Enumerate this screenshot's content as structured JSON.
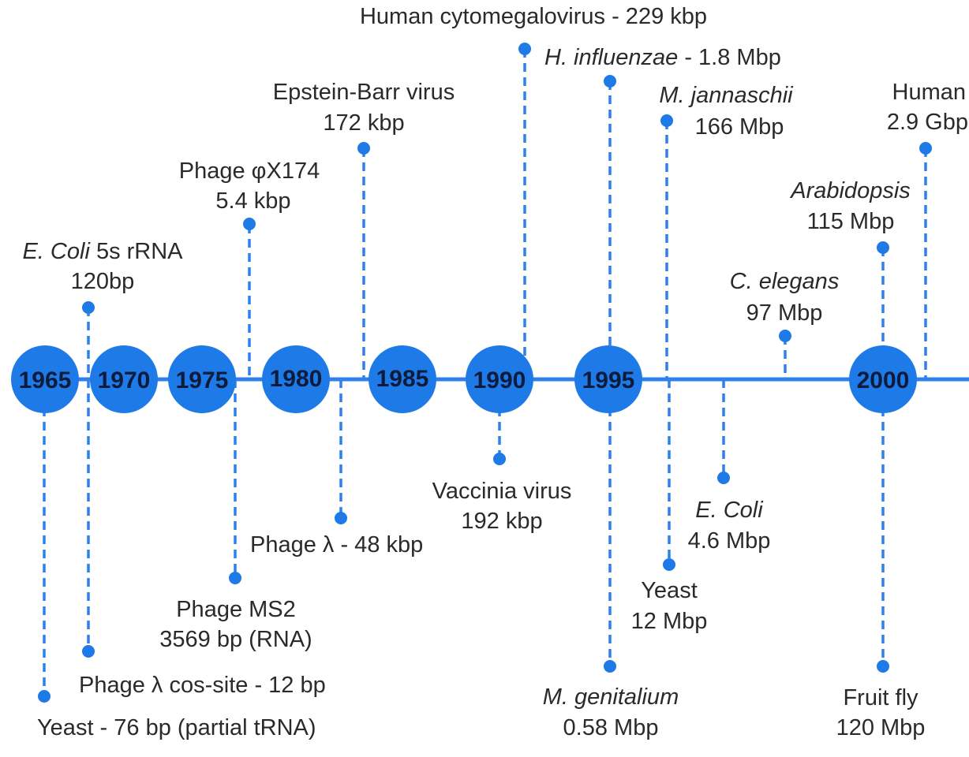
{
  "timeline": {
    "years": [
      "1965",
      "1970",
      "1975",
      "1980",
      "1985",
      "1990",
      "1995",
      "2000"
    ],
    "events": [
      {
        "id": "ecoli-5s-rrna",
        "name": "E. Coli",
        "name_suffix": " 5s rRNA",
        "size": "120bp"
      },
      {
        "id": "phage-phix174",
        "name": "Phage φX174",
        "size": "5.4 kbp"
      },
      {
        "id": "epstein-barr",
        "name": "Epstein-Barr virus",
        "size": "172 kbp"
      },
      {
        "id": "cytomegalovirus",
        "text": "Human cytomegalovirus - 229 kbp"
      },
      {
        "id": "h-influenzae",
        "name": "H. influenzae",
        "size_suffix": " - 1.8 Mbp"
      },
      {
        "id": "m-jannaschii",
        "name": "M. jannaschii",
        "size": "166 Mbp"
      },
      {
        "id": "c-elegans",
        "name": "C. elegans",
        "size": "97 Mbp"
      },
      {
        "id": "arabidopsis",
        "name": "Arabidopsis",
        "size": "115 Mbp"
      },
      {
        "id": "human",
        "name": "Human",
        "size": "2.9 Gbp"
      },
      {
        "id": "yeast-trna",
        "text": "Yeast - 76 bp (partial tRNA)"
      },
      {
        "id": "phage-lambda-cos",
        "text": "Phage λ cos-site - 12 bp"
      },
      {
        "id": "phage-ms2",
        "name": "Phage MS2",
        "size": "3569 bp (RNA)"
      },
      {
        "id": "phage-lambda",
        "text": "Phage λ - 48 kbp"
      },
      {
        "id": "vaccinia",
        "name": "Vaccinia virus",
        "size": "192 kbp"
      },
      {
        "id": "m-genitalium",
        "name": "M. genitalium",
        "size": "0.58 Mbp"
      },
      {
        "id": "yeast",
        "name": "Yeast",
        "size": "12 Mbp"
      },
      {
        "id": "e-coli",
        "name": "E. Coli",
        "size": "4.6 Mbp"
      },
      {
        "id": "fruit-fly",
        "name": "Fruit fly",
        "size": "120 Mbp"
      }
    ]
  },
  "colors": {
    "line": "#2f80ed",
    "circle": "#1e7ae6",
    "year_text": "#0d1b3d",
    "label_text": "#2a2a2a"
  }
}
